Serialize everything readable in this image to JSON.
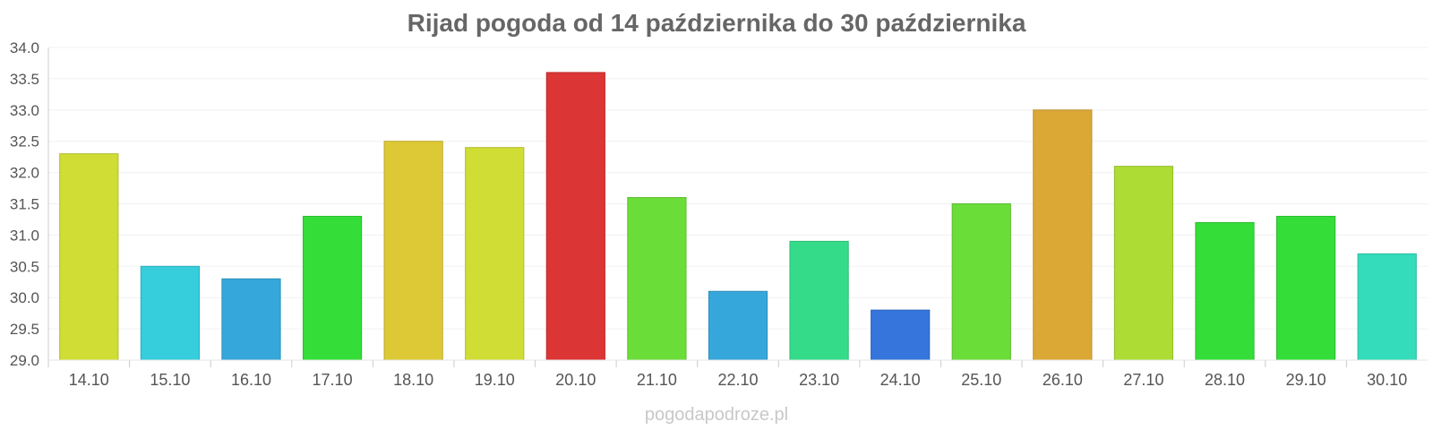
{
  "title": "Rijad pogoda od 14 października do 30 października",
  "watermark": "pogodapodroze.pl",
  "chart_data": {
    "type": "bar",
    "title": "Rijad pogoda od 14 października do 30 października",
    "xlabel": "",
    "ylabel": "",
    "ylim": [
      29.0,
      34.0
    ],
    "yticks": [
      "29.0",
      "29.5",
      "30.0",
      "30.5",
      "31.0",
      "31.5",
      "32.0",
      "32.5",
      "33.0",
      "33.5",
      "34.0"
    ],
    "grid": true,
    "legend": "none",
    "categories": [
      "14.10",
      "15.10",
      "16.10",
      "17.10",
      "18.10",
      "19.10",
      "20.10",
      "21.10",
      "22.10",
      "23.10",
      "24.10",
      "25.10",
      "26.10",
      "27.10",
      "28.10",
      "29.10",
      "30.10"
    ],
    "values": [
      32.3,
      30.5,
      30.3,
      31.3,
      32.5,
      32.4,
      33.6,
      31.6,
      30.1,
      30.9,
      29.8,
      31.5,
      33.0,
      32.1,
      31.2,
      31.3,
      30.7
    ],
    "colors": [
      "#d0dd35",
      "#36cedc",
      "#36a7da",
      "#34dd38",
      "#dcc935",
      "#d0dd35",
      "#dc3535",
      "#6bdd38",
      "#36a7da",
      "#34dc8a",
      "#3575dc",
      "#6bdd38",
      "#dca835",
      "#addd35",
      "#34dd38",
      "#34dd38",
      "#34dcbb"
    ]
  }
}
